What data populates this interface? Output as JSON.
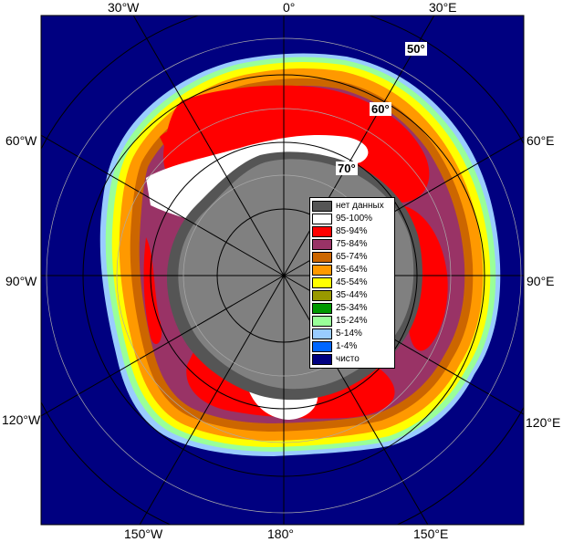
{
  "lon_labels": {
    "w30": "30°W",
    "zero": "0°",
    "e30": "30°E",
    "w60": "60°W",
    "e60": "60°E",
    "w90": "90°W",
    "e90": "90°E",
    "w120": "120°W",
    "e120": "120°E",
    "w150": "150°W",
    "deg180": "180°",
    "e150": "150°E"
  },
  "lat_labels": {
    "lat50": "50°",
    "lat60": "60°",
    "lat70": "70°"
  },
  "legend": [
    {
      "label": "нет данных",
      "color": "#555555"
    },
    {
      "label": "95-100%",
      "color": "#ffffff"
    },
    {
      "label": "85-94%",
      "color": "#ff0000"
    },
    {
      "label": "75-84%",
      "color": "#993366"
    },
    {
      "label": "65-74%",
      "color": "#cc6600"
    },
    {
      "label": "55-64%",
      "color": "#ff9900"
    },
    {
      "label": "45-54%",
      "color": "#ffff00"
    },
    {
      "label": "35-44%",
      "color": "#999900"
    },
    {
      "label": "25-34%",
      "color": "#009900"
    },
    {
      "label": "15-24%",
      "color": "#99ff99"
    },
    {
      "label": "5-14%",
      "color": "#99ccff"
    },
    {
      "label": "1-4%",
      "color": "#0066ff"
    },
    {
      "label": "чисто",
      "color": "#000080"
    }
  ],
  "colors": {
    "ocean": "#000080",
    "land": "#808080",
    "nodata": "#555555"
  }
}
